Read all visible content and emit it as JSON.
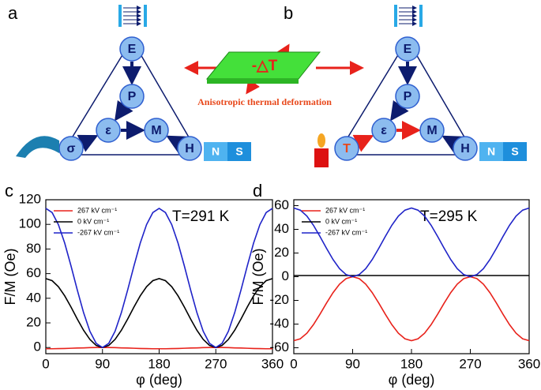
{
  "diagrams": [
    {
      "panel": "a",
      "nodes": [
        "E",
        "P",
        "ε",
        "M",
        "σ",
        "H"
      ],
      "magnet": [
        "N",
        "S"
      ]
    },
    {
      "panel": "b",
      "nodes": [
        "E",
        "P",
        "ε",
        "M",
        "T",
        "H"
      ],
      "magnet": [
        "N",
        "S"
      ]
    }
  ],
  "center": {
    "label": "-△T",
    "caption": "Anisotropic thermal deformation"
  },
  "chart_data": [
    {
      "type": "line",
      "panel": "c",
      "annotation": "T=291 K",
      "xlabel": "φ (deg)",
      "ylabel": "F/M (Oe)",
      "x": [
        0,
        10,
        20,
        30,
        40,
        50,
        60,
        70,
        80,
        90,
        100,
        110,
        120,
        130,
        140,
        150,
        160,
        170,
        180,
        190,
        200,
        210,
        220,
        230,
        240,
        250,
        260,
        270,
        280,
        290,
        300,
        310,
        320,
        330,
        340,
        350,
        360
      ],
      "series": [
        {
          "name": "267 kV cm⁻¹",
          "color": "#e8221b",
          "values": [
            -1,
            -1,
            -0.9,
            -0.8,
            -0.6,
            -0.4,
            -0.3,
            -0.1,
            0,
            0,
            0,
            -0.1,
            -0.3,
            -0.4,
            -0.6,
            -0.8,
            -0.9,
            -1,
            -1,
            -1,
            -0.9,
            -0.8,
            -0.6,
            -0.4,
            -0.3,
            -0.1,
            0,
            0,
            0,
            -0.1,
            -0.3,
            -0.4,
            -0.6,
            -0.8,
            -0.9,
            -1,
            -1
          ]
        },
        {
          "name": "0 kV cm⁻¹",
          "color": "#000000",
          "values": [
            56,
            54.3,
            49.4,
            42,
            32.9,
            23.1,
            14,
            6.6,
            1.7,
            0,
            1.7,
            6.6,
            14,
            23.1,
            32.9,
            42,
            49.4,
            54.3,
            56,
            54.3,
            49.4,
            42,
            32.9,
            23.1,
            14,
            6.6,
            1.7,
            0,
            1.7,
            6.6,
            14,
            23.1,
            32.9,
            42,
            49.4,
            54.3,
            56
          ]
        },
        {
          "name": "-267 kV cm⁻¹",
          "color": "#1f23c8",
          "values": [
            113,
            109.6,
            99.8,
            84.8,
            66.3,
            46.7,
            28.3,
            13.2,
            3.4,
            0,
            3.4,
            13.2,
            28.3,
            46.7,
            66.3,
            84.8,
            99.8,
            109.6,
            113,
            109.6,
            99.8,
            84.8,
            66.3,
            46.7,
            28.3,
            13.2,
            3.4,
            0,
            3.4,
            13.2,
            28.3,
            46.7,
            66.3,
            84.8,
            99.8,
            109.6,
            113
          ]
        }
      ],
      "xlim": [
        0,
        360
      ],
      "xticks": [
        0,
        90,
        180,
        270,
        360
      ],
      "ylim": [
        -5,
        120
      ],
      "yticks": [
        0,
        20,
        40,
        60,
        80,
        100,
        120
      ],
      "legend": "upper left"
    },
    {
      "type": "line",
      "panel": "d",
      "annotation": "T=295 K",
      "xlabel": "φ (deg)",
      "ylabel": "F/M (Oe)",
      "x": [
        0,
        10,
        20,
        30,
        40,
        50,
        60,
        70,
        80,
        90,
        100,
        110,
        120,
        130,
        140,
        150,
        160,
        170,
        180,
        190,
        200,
        210,
        220,
        230,
        240,
        250,
        260,
        270,
        280,
        290,
        300,
        310,
        320,
        330,
        340,
        350,
        360
      ],
      "series": [
        {
          "name": "267 kV cm⁻¹",
          "color": "#e8221b",
          "values": [
            -54,
            -52.4,
            -47.7,
            -40.5,
            -31.7,
            -22.3,
            -13.5,
            -6.3,
            -1.6,
            0,
            -1.6,
            -6.3,
            -13.5,
            -22.3,
            -31.7,
            -40.5,
            -47.7,
            -52.4,
            -54,
            -52.4,
            -47.7,
            -40.5,
            -31.7,
            -22.3,
            -13.5,
            -6.3,
            -1.6,
            0,
            -1.6,
            -6.3,
            -13.5,
            -22.3,
            -31.7,
            -40.5,
            -47.7,
            -52.4,
            -54
          ]
        },
        {
          "name": "0 kV cm⁻¹",
          "color": "#000000",
          "values": [
            1,
            1,
            1,
            1,
            1,
            1,
            1,
            1,
            1,
            1,
            1,
            1,
            1,
            1,
            1,
            1,
            1,
            1,
            1,
            1,
            1,
            1,
            1,
            1,
            1,
            1,
            1,
            1,
            1,
            1,
            1,
            1,
            1,
            1,
            1,
            1,
            1
          ]
        },
        {
          "name": "-267 kV cm⁻¹",
          "color": "#1f23c8",
          "values": [
            58,
            56.2,
            51.2,
            43.5,
            34,
            24,
            14.5,
            6.8,
            1.8,
            0,
            1.8,
            6.8,
            14.5,
            24,
            34,
            43.5,
            51.2,
            56.2,
            58,
            56.2,
            51.2,
            43.5,
            34,
            24,
            14.5,
            6.8,
            1.8,
            0,
            1.8,
            6.8,
            14.5,
            24,
            34,
            43.5,
            51.2,
            56.2,
            58
          ]
        }
      ],
      "xlim": [
        0,
        360
      ],
      "xticks": [
        0,
        90,
        180,
        270,
        360
      ],
      "ylim": [
        -65,
        65
      ],
      "yticks": [
        -60,
        -40,
        -20,
        0,
        20,
        40,
        60
      ],
      "legend": "upper left"
    }
  ]
}
